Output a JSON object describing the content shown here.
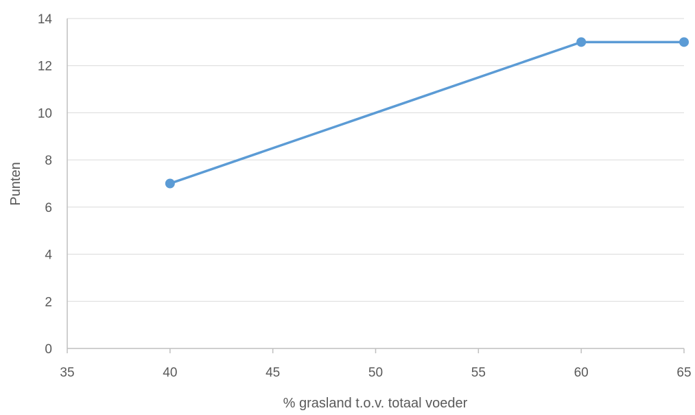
{
  "chart_data": {
    "type": "line",
    "title": "",
    "xlabel": "% grasland t.o.v. totaal voeder",
    "ylabel": "Punten",
    "xlim": [
      35,
      65
    ],
    "ylim": [
      0,
      14
    ],
    "x_ticks": [
      35,
      40,
      45,
      50,
      55,
      60,
      65
    ],
    "y_ticks": [
      0,
      2,
      4,
      6,
      8,
      10,
      12,
      14
    ],
    "grid": "horizontal",
    "legend": "none",
    "series": [
      {
        "color": "#5b9bd5",
        "points": [
          {
            "x": 40,
            "y": 7
          },
          {
            "x": 60,
            "y": 13
          },
          {
            "x": 65,
            "y": 13
          }
        ]
      }
    ],
    "colors": {
      "line": "#5b9bd5",
      "grid": "#d9d9d9",
      "axis": "#bfbfbf",
      "text": "#595959"
    }
  }
}
